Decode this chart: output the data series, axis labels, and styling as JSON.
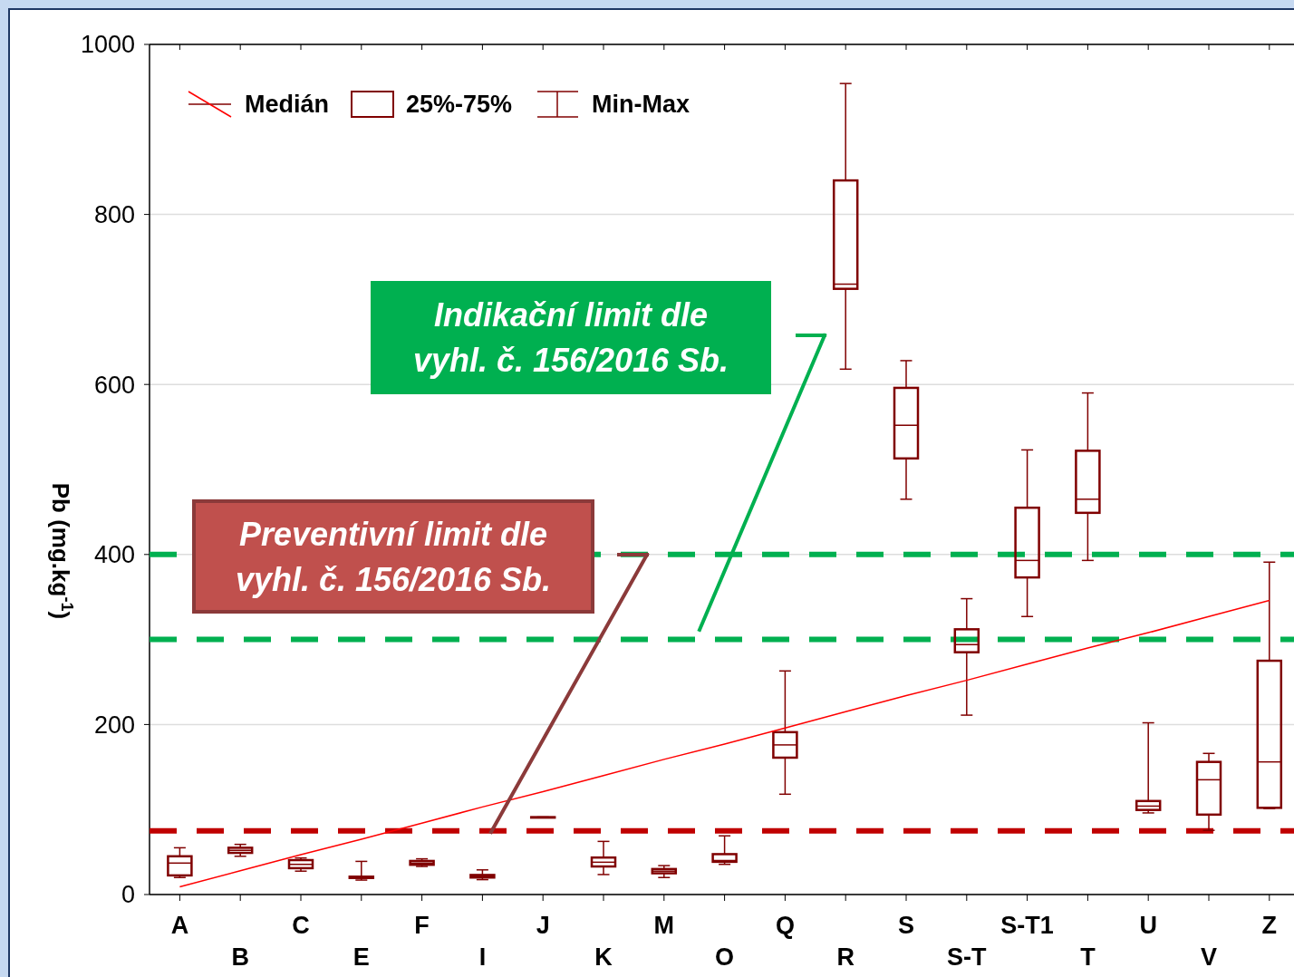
{
  "chart_data": {
    "type": "box",
    "ylabel": "Pb (mg.kg$^{-1}$)",
    "categories": [
      "A",
      "B",
      "C",
      "E",
      "F",
      "I",
      "J",
      "K",
      "M",
      "O",
      "Q",
      "R",
      "S",
      "S-T",
      "S-T1",
      "T",
      "U",
      "V",
      "Z"
    ],
    "ylim": [
      0,
      1000
    ],
    "yticks": [
      0,
      200,
      400,
      600,
      800,
      1000
    ],
    "grid": "y",
    "series": [
      {
        "type": "box",
        "color": "#800000",
        "boxes": [
          {
            "low": 20,
            "q1": 22.5,
            "median": 37,
            "q3": 45,
            "high": 55
          },
          {
            "low": 45,
            "q1": 49,
            "median": 52,
            "q3": 55,
            "high": 59
          },
          {
            "low": 27.5,
            "q1": 31,
            "median": 35.5,
            "q3": 40.5,
            "high": 43
          },
          {
            "low": 17,
            "q1": 19.5,
            "median": 20,
            "q3": 21,
            "high": 39
          },
          {
            "low": 33,
            "q1": 35,
            "median": 37,
            "q3": 39.5,
            "high": 42
          },
          {
            "low": 17.5,
            "q1": 20,
            "median": 22,
            "q3": 23,
            "high": 29
          },
          {
            "low": 91,
            "q1": 91,
            "median": 91,
            "q3": 91,
            "high": 91
          },
          {
            "low": 23.5,
            "q1": 33,
            "median": 38,
            "q3": 43.5,
            "high": 62.5
          },
          {
            "low": 20,
            "q1": 25,
            "median": 27.5,
            "q3": 30,
            "high": 34
          },
          {
            "low": 35.5,
            "q1": 38.5,
            "median": 40,
            "q3": 47.5,
            "high": 69
          },
          {
            "low": 118,
            "q1": 161,
            "median": 176,
            "q3": 191,
            "high": 263
          },
          {
            "low": 618,
            "q1": 712.5,
            "median": 718,
            "q3": 840,
            "high": 954
          },
          {
            "low": 465,
            "q1": 513,
            "median": 552,
            "q3": 596,
            "high": 628
          },
          {
            "low": 211,
            "q1": 285,
            "median": 294,
            "q3": 312,
            "high": 348
          },
          {
            "low": 327,
            "q1": 373,
            "median": 393,
            "q3": 455,
            "high": 523
          },
          {
            "low": 393,
            "q1": 449,
            "median": 465,
            "q3": 522,
            "high": 590
          },
          {
            "low": 96,
            "q1": 99.5,
            "median": 104,
            "q3": 110,
            "high": 202
          },
          {
            "low": 75.5,
            "q1": 94,
            "median": 135,
            "q3": 156,
            "high": 166
          },
          {
            "low": 101,
            "q1": 102,
            "median": 156,
            "q3": 275,
            "high": 391
          }
        ]
      },
      {
        "type": "line",
        "color": "#ff0000",
        "values": [
          9,
          28,
          47,
          65,
          84,
          103,
          121,
          140,
          159,
          177,
          196,
          215,
          234,
          252,
          271,
          290,
          308,
          327,
          346
        ]
      }
    ],
    "ref_lines": [
      {
        "axis": "y",
        "value": 400,
        "color": "#00b050",
        "line_style": "dashed"
      },
      {
        "axis": "y",
        "value": 300,
        "color": "#00b050",
        "line_style": "dashed"
      },
      {
        "axis": "y",
        "value": 75,
        "color": "#c00000",
        "line_style": "dashed"
      }
    ],
    "annotations": [
      "Indikační limit  dle vyhl. č. 156/2016 Sb.",
      "Preventivní limit  dle vyhl. č. 156/2016 Sb.",
      "Medián",
      "25%-75%",
      "Min-Max"
    ]
  }
}
